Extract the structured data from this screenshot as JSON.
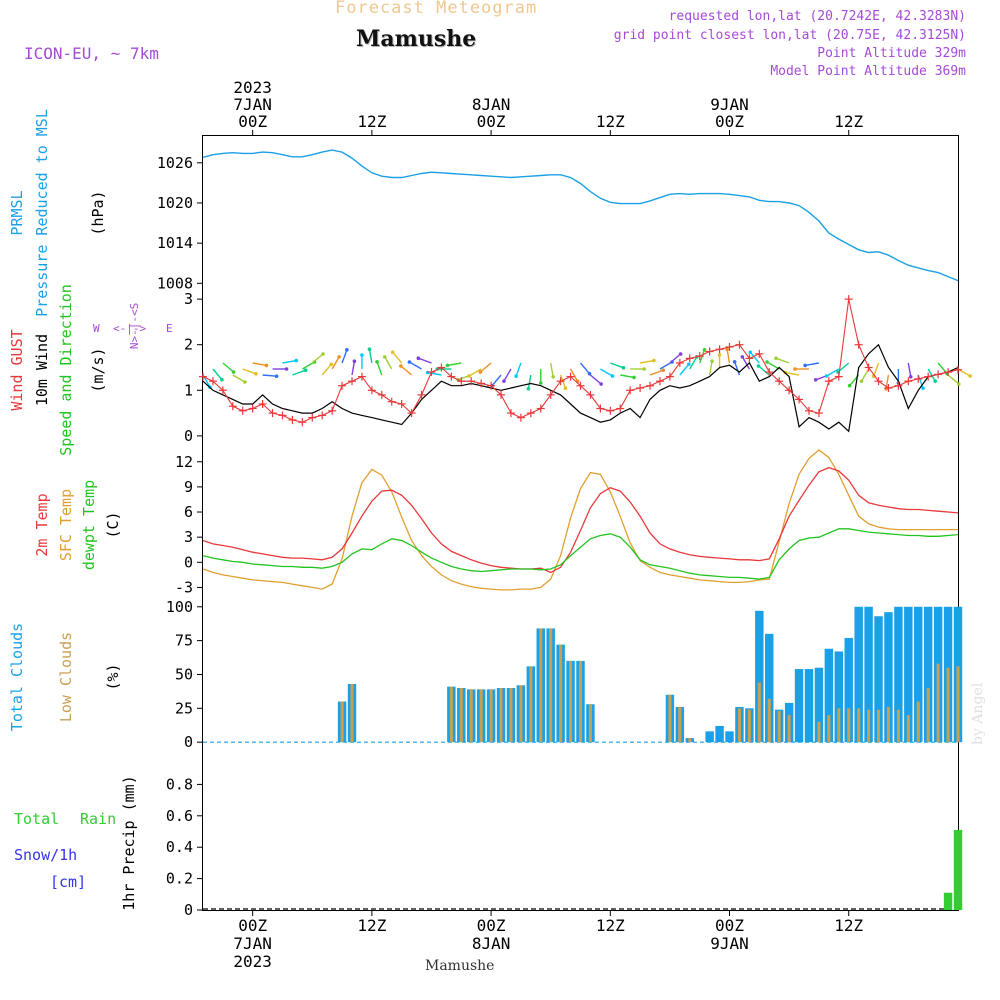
{
  "header": {
    "title_faint": "Forecast Meteogram",
    "station": "Mamushe",
    "model": "ICON-EU, ~ 7km",
    "requested": "requested lon,lat (20.7242E, 42.3283N)",
    "gridpoint": "grid point closest lon,lat (20.75E, 42.3125N)",
    "point_alt": "Point Altitude 329m",
    "model_alt": "Model Point Altitude 369m",
    "footer_station": "Mamushe",
    "watermark": "by Angel"
  },
  "colors": {
    "pressure": "#1aa0e6",
    "gust": "#e8383a",
    "wind": "#000000",
    "temp": "#e8383a",
    "sfc": "#e0a030",
    "dewpt": "#22c41f",
    "total_clouds": "#1aa0e6",
    "low_clouds": "#c8a050",
    "rain": "#33cc33",
    "snow": "#3333ee",
    "purple": "#a64ad8",
    "faint": "#f0c890"
  },
  "time_axis": {
    "top_labels": [
      {
        "t": 0,
        "lines": [
          "2023",
          "7JAN",
          "00Z"
        ]
      },
      {
        "t": 12,
        "lines": [
          "12Z"
        ]
      },
      {
        "t": 24,
        "lines": [
          "8JAN",
          "00Z"
        ]
      },
      {
        "t": 36,
        "lines": [
          "12Z"
        ]
      },
      {
        "t": 48,
        "lines": [
          "9JAN",
          "00Z"
        ]
      },
      {
        "t": 60,
        "lines": [
          "12Z"
        ]
      }
    ],
    "bottom_labels": [
      {
        "t": 0,
        "lines": [
          "00Z",
          "7JAN",
          "2023"
        ]
      },
      {
        "t": 12,
        "lines": [
          "12Z"
        ]
      },
      {
        "t": 24,
        "lines": [
          "00Z",
          "8JAN"
        ]
      },
      {
        "t": 36,
        "lines": [
          "12Z"
        ]
      },
      {
        "t": 48,
        "lines": [
          "00Z",
          "9JAN"
        ]
      },
      {
        "t": 60,
        "lines": [
          "12Z"
        ]
      }
    ],
    "xlim": [
      -5,
      71
    ]
  },
  "panel_labels": {
    "pressure": [
      {
        "text": "PRMSL",
        "color": "#1aa0e6"
      },
      {
        "text": "Pressure Reduced to MSL",
        "color": "#1aa0e6"
      },
      {
        "text": "(hPa)",
        "color": "#000000"
      }
    ],
    "wind": [
      {
        "text": "Wind GUST",
        "color": "#e8383a"
      },
      {
        "text": "10m Wind",
        "color": "#000000"
      },
      {
        "text": "Speed and Direction",
        "color": "#22c41f"
      },
      {
        "text": "(m/s)",
        "color": "#000000"
      }
    ],
    "compass": {
      "w": "W",
      "e": "E",
      "arrow": "<-|->",
      "n_col": "N>-|-<S"
    },
    "temp": [
      {
        "text": "2m Temp",
        "color": "#e8383a"
      },
      {
        "text": "SFC Temp",
        "color": "#e0a030"
      },
      {
        "text": "dewpt Temp",
        "color": "#22c41f"
      },
      {
        "text": "(C)",
        "color": "#000000"
      }
    ],
    "clouds": [
      {
        "text": "Total Clouds",
        "color": "#1aa0e6"
      },
      {
        "text": "Low Clouds",
        "color": "#c8a050"
      },
      {
        "text": "(%)",
        "color": "#000000"
      }
    ],
    "precip_left": [
      {
        "text": "Total",
        "color": "#33cc33"
      },
      {
        "text": "Rain",
        "color": "#33cc33"
      },
      {
        "text": "Snow/1h",
        "color": "#3333ee"
      },
      {
        "text": "[cm]",
        "color": "#3333ee"
      }
    ],
    "precip_axis": "1hr Precip (mm)"
  },
  "chart_data": [
    {
      "type": "line",
      "name": "PRMSL",
      "ylabel": "(hPa)",
      "ylim": [
        1007,
        1030
      ],
      "yticks": [
        1008,
        1014,
        1020,
        1026
      ],
      "x": [
        -5,
        -4,
        -3,
        -2,
        -1,
        0,
        1,
        2,
        3,
        4,
        5,
        6,
        7,
        8,
        9,
        10,
        11,
        12,
        13,
        14,
        15,
        16,
        17,
        18,
        19,
        20,
        21,
        22,
        23,
        24,
        25,
        26,
        27,
        28,
        29,
        30,
        31,
        32,
        33,
        34,
        35,
        36,
        37,
        38,
        39,
        40,
        41,
        42,
        43,
        44,
        45,
        46,
        47,
        48,
        49,
        50,
        51,
        52,
        53,
        54,
        55,
        56,
        57,
        58,
        59,
        60,
        61,
        62,
        63,
        64,
        65,
        66,
        67,
        68,
        69,
        70,
        71
      ],
      "y": [
        1026.8,
        1027.2,
        1027.4,
        1027.5,
        1027.4,
        1027.4,
        1027.6,
        1027.5,
        1027.2,
        1026.9,
        1026.9,
        1027.2,
        1027.6,
        1027.9,
        1027.6,
        1026.7,
        1025.5,
        1024.5,
        1024.0,
        1023.8,
        1023.8,
        1024.1,
        1024.4,
        1024.6,
        1024.5,
        1024.4,
        1024.3,
        1024.2,
        1024.1,
        1024.0,
        1023.9,
        1023.8,
        1023.9,
        1024.0,
        1024.1,
        1024.2,
        1024.2,
        1023.8,
        1022.9,
        1021.7,
        1020.7,
        1020.1,
        1019.9,
        1019.9,
        1019.9,
        1020.3,
        1020.8,
        1021.3,
        1021.4,
        1021.3,
        1021.4,
        1021.4,
        1021.4,
        1021.3,
        1021.1,
        1020.9,
        1020.4,
        1020.2,
        1020.2,
        1020.0,
        1019.6,
        1018.6,
        1017.3,
        1015.5,
        1014.6,
        1013.8,
        1013.0,
        1012.6,
        1012.7,
        1012.2,
        1011.4,
        1010.7,
        1010.3,
        1009.9,
        1009.6,
        1009.0,
        1008.4
      ]
    },
    {
      "type": "line",
      "name": "Wind",
      "ylabel": "(m/s)",
      "ylim": [
        -0.2,
        3.2
      ],
      "yticks": [
        0,
        1,
        2,
        3
      ],
      "x": [
        -5,
        -4,
        -3,
        -2,
        -1,
        0,
        1,
        2,
        3,
        4,
        5,
        6,
        7,
        8,
        9,
        10,
        11,
        12,
        13,
        14,
        15,
        16,
        17,
        18,
        19,
        20,
        21,
        22,
        23,
        24,
        25,
        26,
        27,
        28,
        29,
        30,
        31,
        32,
        33,
        34,
        35,
        36,
        37,
        38,
        39,
        40,
        41,
        42,
        43,
        44,
        45,
        46,
        47,
        48,
        49,
        50,
        51,
        52,
        53,
        54,
        55,
        56,
        57,
        58,
        59,
        60,
        61,
        62,
        63,
        64,
        65,
        66,
        67,
        68,
        69,
        70,
        71
      ],
      "wind": [
        1.2,
        1.0,
        0.9,
        0.8,
        0.7,
        0.7,
        0.9,
        0.7,
        0.6,
        0.55,
        0.5,
        0.5,
        0.6,
        0.75,
        0.6,
        0.5,
        0.45,
        0.4,
        0.35,
        0.3,
        0.25,
        0.5,
        0.8,
        1.0,
        1.2,
        1.1,
        1.1,
        1.15,
        1.1,
        1.05,
        1.0,
        1.05,
        1.1,
        1.15,
        1.1,
        1.0,
        0.9,
        0.7,
        0.5,
        0.4,
        0.3,
        0.35,
        0.5,
        0.6,
        0.4,
        0.8,
        1.0,
        1.1,
        1.05,
        1.1,
        1.2,
        1.3,
        1.5,
        1.55,
        1.4,
        1.6,
        1.2,
        1.3,
        1.5,
        1.3,
        0.2,
        0.4,
        0.3,
        0.15,
        0.3,
        0.1,
        1.5,
        1.8,
        2.0,
        1.5,
        1.2,
        0.6,
        1.0,
        1.3,
        1.35,
        1.4,
        1.5
      ],
      "gust": [
        1.3,
        1.2,
        1.0,
        0.65,
        0.55,
        0.6,
        0.7,
        0.5,
        0.45,
        0.35,
        0.3,
        0.4,
        0.45,
        0.55,
        1.1,
        1.2,
        1.3,
        1.0,
        0.9,
        0.75,
        0.7,
        0.5,
        0.9,
        1.4,
        1.5,
        1.3,
        1.2,
        1.2,
        1.15,
        1.1,
        0.9,
        0.5,
        0.4,
        0.5,
        0.6,
        0.9,
        1.2,
        1.3,
        1.1,
        0.9,
        0.6,
        0.55,
        0.6,
        1.0,
        1.05,
        1.1,
        1.2,
        1.3,
        1.6,
        1.7,
        1.75,
        1.85,
        1.9,
        1.95,
        2.0,
        1.7,
        1.8,
        1.4,
        1.2,
        1.0,
        0.8,
        0.55,
        0.5,
        1.2,
        1.3,
        3.0,
        2.0,
        1.5,
        1.2,
        1.05,
        1.1,
        1.2,
        1.25,
        1.3,
        1.35,
        1.4,
        1.45
      ],
      "arrow_dir_deg": [
        30,
        40,
        50,
        60,
        70,
        80,
        85,
        90,
        100,
        110,
        120,
        130,
        140,
        150,
        160,
        170,
        180,
        190,
        200,
        210,
        220,
        230,
        240,
        250,
        260,
        270,
        280,
        290,
        300,
        310,
        320,
        330,
        340,
        350,
        0,
        10,
        20,
        30,
        40,
        50,
        60,
        70,
        80,
        90,
        100,
        110,
        120,
        130,
        140,
        150,
        160,
        170,
        180,
        190,
        200,
        210,
        220,
        230,
        240,
        250,
        260,
        270,
        280,
        290,
        300,
        310,
        320,
        330,
        340,
        350,
        0,
        10,
        20,
        30,
        40,
        50,
        60
      ]
    },
    {
      "type": "line",
      "name": "Temperature",
      "ylabel": "(C)",
      "ylim": [
        -4.5,
        14
      ],
      "yticks": [
        -3,
        0,
        3,
        6,
        9,
        12
      ],
      "x": [
        -5,
        -4,
        -3,
        -2,
        -1,
        0,
        1,
        2,
        3,
        4,
        5,
        6,
        7,
        8,
        9,
        10,
        11,
        12,
        13,
        14,
        15,
        16,
        17,
        18,
        19,
        20,
        21,
        22,
        23,
        24,
        25,
        26,
        27,
        28,
        29,
        30,
        31,
        32,
        33,
        34,
        35,
        36,
        37,
        38,
        39,
        40,
        41,
        42,
        43,
        44,
        45,
        46,
        47,
        48,
        49,
        50,
        51,
        52,
        53,
        54,
        55,
        56,
        57,
        58,
        59,
        60,
        61,
        62,
        63,
        64,
        65,
        66,
        67,
        68,
        69,
        70,
        71
      ],
      "t2m": [
        2.6,
        2.2,
        2.0,
        1.8,
        1.5,
        1.2,
        1.0,
        0.8,
        0.6,
        0.5,
        0.5,
        0.4,
        0.3,
        0.6,
        1.6,
        3.5,
        5.5,
        7.3,
        8.5,
        8.6,
        8.0,
        6.8,
        5.2,
        3.5,
        2.2,
        1.3,
        0.8,
        0.3,
        -0.1,
        -0.4,
        -0.6,
        -0.7,
        -0.8,
        -0.8,
        -0.7,
        -1.2,
        -0.6,
        1.2,
        3.8,
        6.5,
        8.2,
        8.9,
        8.5,
        7.2,
        5.5,
        3.5,
        2.2,
        1.6,
        1.2,
        0.9,
        0.7,
        0.6,
        0.5,
        0.4,
        0.3,
        0.3,
        0.2,
        0.4,
        2.8,
        5.5,
        7.4,
        9.2,
        10.8,
        11.3,
        10.9,
        9.8,
        8.0,
        7.1,
        6.8,
        6.6,
        6.4,
        6.3,
        6.3,
        6.2,
        6.1,
        6.0,
        5.9
      ],
      "sfc": [
        -0.8,
        -1.2,
        -1.5,
        -1.7,
        -1.9,
        -2.1,
        -2.2,
        -2.3,
        -2.4,
        -2.6,
        -2.8,
        -3.0,
        -3.2,
        -2.6,
        0.4,
        5.5,
        9.5,
        11.1,
        10.4,
        8.4,
        5.4,
        2.6,
        0.8,
        -0.5,
        -1.5,
        -2.2,
        -2.6,
        -2.9,
        -3.1,
        -3.2,
        -3.3,
        -3.3,
        -3.2,
        -3.2,
        -3.0,
        -2.0,
        0.8,
        5.3,
        8.8,
        10.7,
        10.5,
        8.4,
        5.5,
        2.3,
        0.2,
        -0.6,
        -1.2,
        -1.5,
        -1.7,
        -1.9,
        -2.1,
        -2.2,
        -2.3,
        -2.4,
        -2.4,
        -2.3,
        -2.1,
        -2.0,
        2.5,
        7.0,
        10.5,
        12.4,
        13.4,
        12.5,
        10.5,
        8.0,
        5.5,
        4.6,
        4.2,
        4.0,
        3.9,
        3.9,
        3.9,
        3.9,
        3.9,
        3.9,
        3.9
      ],
      "dewpt": [
        0.8,
        0.5,
        0.3,
        0.1,
        0.0,
        -0.2,
        -0.3,
        -0.4,
        -0.5,
        -0.5,
        -0.6,
        -0.6,
        -0.7,
        -0.5,
        0.0,
        1.0,
        1.6,
        1.5,
        2.2,
        2.8,
        2.6,
        2.0,
        1.2,
        0.5,
        0.0,
        -0.5,
        -0.8,
        -1.0,
        -1.1,
        -1.0,
        -0.9,
        -0.8,
        -0.8,
        -0.8,
        -0.9,
        -0.8,
        -0.3,
        0.8,
        1.8,
        2.8,
        3.2,
        3.4,
        3.0,
        1.8,
        0.3,
        -0.3,
        -0.5,
        -0.7,
        -1.0,
        -1.3,
        -1.5,
        -1.6,
        -1.7,
        -1.8,
        -1.8,
        -1.9,
        -2.0,
        -1.8,
        0.3,
        1.6,
        2.6,
        2.9,
        3.0,
        3.5,
        4.0,
        4.0,
        3.8,
        3.6,
        3.5,
        3.4,
        3.3,
        3.2,
        3.2,
        3.1,
        3.1,
        3.2,
        3.3
      ]
    },
    {
      "type": "bar",
      "name": "Clouds",
      "ylabel": "(%)",
      "ylim": [
        -8,
        105
      ],
      "yticks": [
        0,
        25,
        50,
        75,
        100
      ],
      "x": [
        9,
        10,
        20,
        21,
        22,
        23,
        24,
        25,
        26,
        27,
        28,
        29,
        30,
        31,
        32,
        33,
        34,
        35,
        36,
        42,
        43,
        44,
        45,
        46,
        47,
        48,
        49,
        50,
        51,
        52,
        53,
        54,
        55,
        56,
        57,
        58,
        59,
        60,
        61,
        62,
        63,
        64,
        65,
        66,
        67,
        68,
        69,
        70,
        71
      ],
      "total": [
        30,
        43,
        41,
        40,
        39,
        39,
        39,
        40,
        40,
        42,
        56,
        84,
        84,
        72,
        60,
        60,
        28,
        0,
        0,
        35,
        26,
        3,
        0,
        8,
        12,
        8,
        26,
        25,
        97,
        80,
        24,
        29,
        54,
        54,
        55,
        69,
        67,
        77,
        100,
        100,
        93,
        96,
        100,
        100,
        100,
        100,
        100,
        100,
        100
      ],
      "low": [
        30,
        43,
        41,
        40,
        39,
        39,
        39,
        40,
        40,
        42,
        56,
        84,
        84,
        72,
        60,
        60,
        28,
        0,
        0,
        35,
        26,
        3,
        0,
        0,
        0,
        0,
        25,
        24,
        44,
        32,
        23,
        20,
        0,
        0,
        15,
        20,
        25,
        25,
        25,
        24,
        24,
        26,
        24,
        20,
        30,
        40,
        58,
        55,
        56
      ]
    },
    {
      "type": "bar",
      "name": "Precip",
      "ylabel": "1hr Precip (mm)",
      "ylim": [
        0,
        1.0
      ],
      "yticks": [
        0,
        0.2,
        0.4,
        0.6,
        0.8
      ],
      "x": [
        70,
        71
      ],
      "rain": [
        0.11,
        0.51
      ],
      "snow": [
        0,
        0
      ]
    }
  ]
}
